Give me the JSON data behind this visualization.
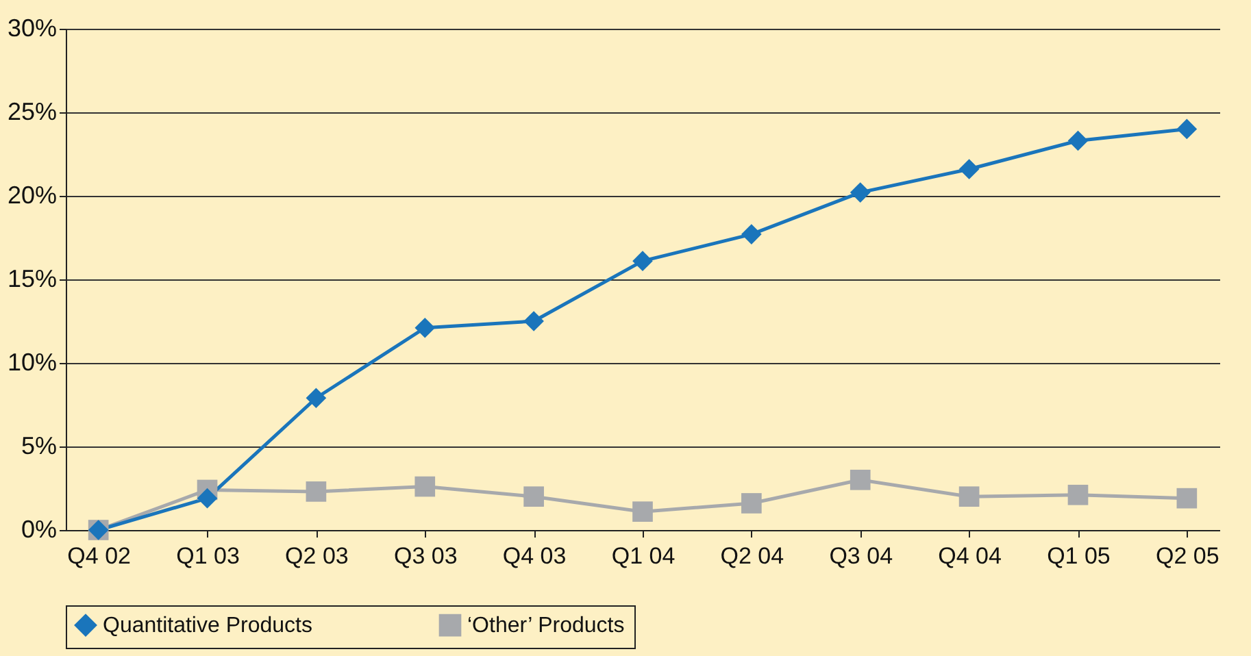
{
  "chart_data": {
    "type": "line",
    "categories": [
      "Q4 02",
      "Q1 03",
      "Q2 03",
      "Q3 03",
      "Q4 03",
      "Q1 04",
      "Q2 04",
      "Q3 04",
      "Q4 04",
      "Q1 05",
      "Q2 05"
    ],
    "series": [
      {
        "name": "Quantitative Products",
        "color": "#1a75bb",
        "marker": "diamond",
        "values": [
          0,
          1.9,
          7.9,
          12.1,
          12.5,
          16.1,
          17.7,
          20.2,
          21.6,
          23.3,
          24.0
        ]
      },
      {
        "name": "‘Other’ Products",
        "color": "#a7a9ac",
        "marker": "square",
        "values": [
          0,
          2.4,
          2.3,
          2.6,
          2.0,
          1.1,
          1.6,
          3.0,
          2.0,
          2.1,
          1.9
        ]
      }
    ],
    "ylim": [
      0,
      30
    ],
    "yticks": [
      {
        "value": 0,
        "label": "0%"
      },
      {
        "value": 5,
        "label": "5%"
      },
      {
        "value": 10,
        "label": "10%"
      },
      {
        "value": 15,
        "label": "15%"
      },
      {
        "value": 20,
        "label": "20%"
      },
      {
        "value": 25,
        "label": "25%"
      },
      {
        "value": 30,
        "label": "30%"
      }
    ],
    "grid": "y",
    "legend": "bottom",
    "line_style": "solid"
  }
}
